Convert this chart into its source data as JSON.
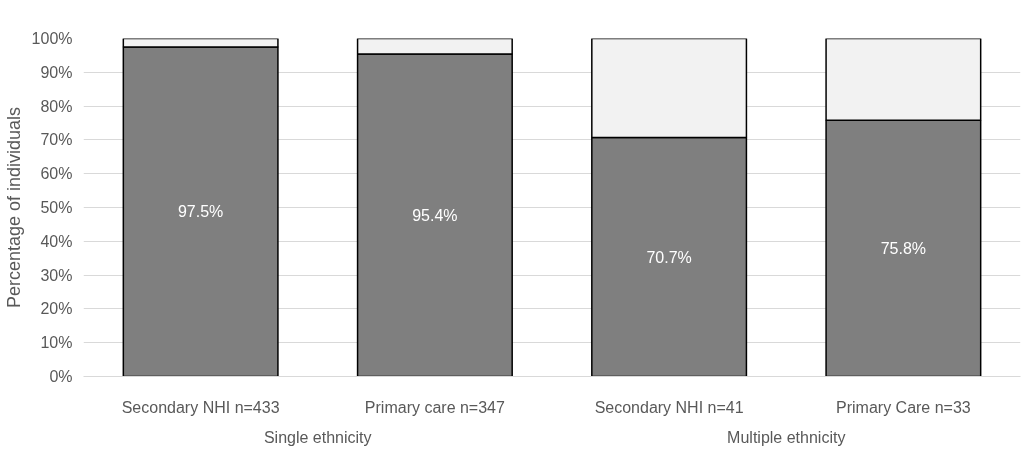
{
  "chart_data": {
    "type": "bar",
    "stacked": true,
    "categories": [
      "Secondary NHI n=433",
      "Primary care n=347",
      "Secondary NHI n=41",
      "Primary Care n=33"
    ],
    "ylabel": "Percentage of individuals",
    "series": [
      {
        "color": "#7f7f7f",
        "values": [
          97.5,
          95.4,
          70.7,
          75.8
        ],
        "value_labels": [
          "97.5%",
          "95.4%",
          "70.7%",
          "75.8%"
        ]
      },
      {
        "color": "#f2f2f2",
        "values": [
          2.5,
          4.6,
          29.3,
          24.2
        ]
      }
    ],
    "ylim": [
      0,
      100
    ],
    "yticks": [
      {
        "value": 0,
        "label": "0%"
      },
      {
        "value": 10,
        "label": "10%"
      },
      {
        "value": 20,
        "label": "20%"
      },
      {
        "value": 30,
        "label": "30%"
      },
      {
        "value": 40,
        "label": "40%"
      },
      {
        "value": 50,
        "label": "50%"
      },
      {
        "value": 60,
        "label": "60%"
      },
      {
        "value": 70,
        "label": "70%"
      },
      {
        "value": 80,
        "label": "80%"
      },
      {
        "value": 90,
        "label": "90%"
      },
      {
        "value": 100,
        "label": "100%"
      }
    ],
    "grid": "y",
    "annotations": [
      "Single ethnicity",
      "Multiple ethnicity"
    ]
  }
}
